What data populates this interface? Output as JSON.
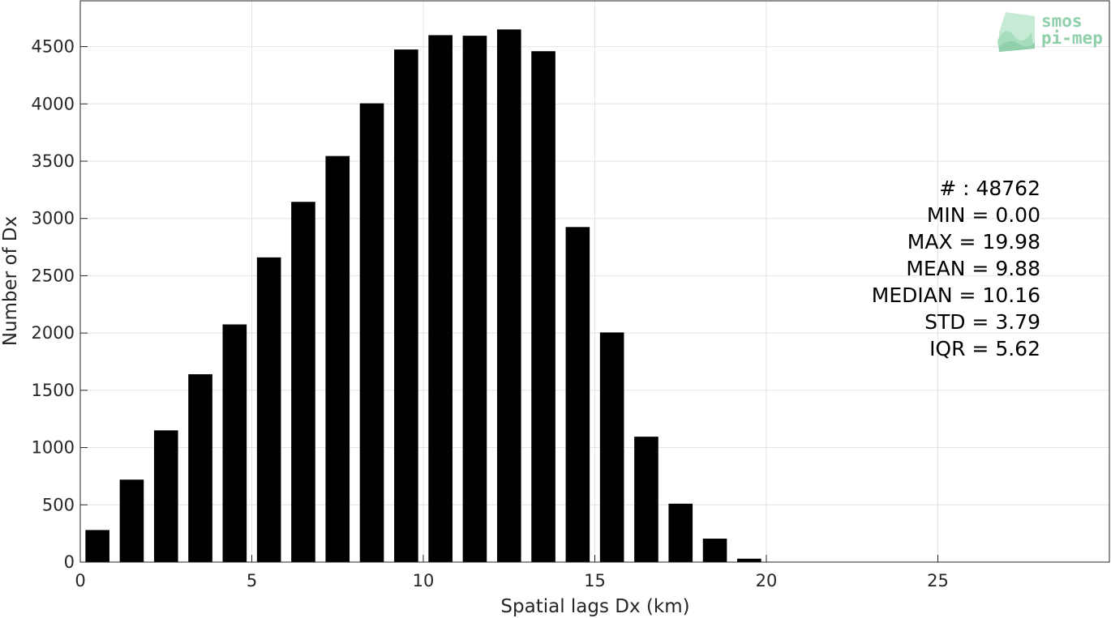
{
  "chart_data": {
    "type": "bar",
    "xlabel": "Spatial lags Dx (km)",
    "ylabel": "Number of Dx",
    "xlim": [
      0,
      30
    ],
    "ylim": [
      0,
      4900
    ],
    "xticks": [
      0,
      5,
      10,
      15,
      20,
      25
    ],
    "yticks": [
      0,
      500,
      1000,
      1500,
      2000,
      2500,
      3000,
      3500,
      4000,
      4500
    ],
    "grid": true,
    "bar_color": "#000000",
    "bar_width": 0.7,
    "x": [
      0.5,
      1.5,
      2.5,
      3.5,
      4.5,
      5.5,
      6.5,
      7.5,
      8.5,
      9.5,
      10.5,
      11.5,
      12.5,
      13.5,
      14.5,
      15.5,
      16.5,
      17.5,
      18.5,
      19.5
    ],
    "values": [
      280,
      720,
      1150,
      1640,
      2075,
      2660,
      3145,
      3545,
      4005,
      4475,
      4600,
      4595,
      4650,
      4460,
      2925,
      2005,
      1095,
      510,
      205,
      30
    ]
  },
  "stats": {
    "lines": [
      "# : 48762",
      "MIN = 0.00",
      "MAX =  19.98",
      "MEAN = 9.88",
      "MEDIAN = 10.16",
      "STD = 3.79",
      "IQR = 5.62"
    ]
  },
  "logo": {
    "line1": "smos",
    "line2": "pi-mep",
    "icon": "smos-pimep-logo-icon",
    "color": "#8fcfa9"
  }
}
